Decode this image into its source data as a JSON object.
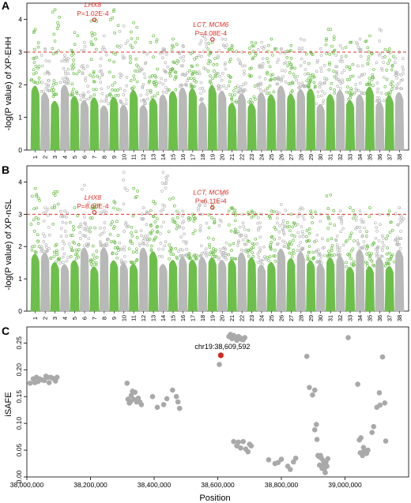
{
  "colors": {
    "green": "#6cc04a",
    "gray": "#b8b8b8",
    "threshold": "#e0302a",
    "highlight": "#d42a20",
    "isafe_point": "#a9a9a9"
  },
  "chart_data": [
    {
      "panel": "A",
      "type": "scatter",
      "subtype": "manhattan",
      "ylabel": "-log(P value) of XP-EHH",
      "ylim": [
        0,
        4.5
      ],
      "yticks": [
        0,
        1,
        2,
        3,
        4
      ],
      "threshold": 3,
      "chromosomes": [
        "1",
        "2",
        "3",
        "4",
        "5",
        "6",
        "7",
        "8",
        "9",
        "10",
        "11",
        "12",
        "13",
        "14",
        "15",
        "16",
        "17",
        "18",
        "19",
        "20",
        "21",
        "22",
        "23",
        "24",
        "25",
        "26",
        "27",
        "28",
        "29",
        "30",
        "31",
        "32",
        "33",
        "34",
        "35",
        "36",
        "37",
        "38"
      ],
      "chromosome_colors": [
        "green",
        "gray",
        "green",
        "gray",
        "green",
        "gray",
        "green",
        "gray",
        "green",
        "gray",
        "green",
        "gray",
        "green",
        "gray",
        "green",
        "gray",
        "green",
        "gray",
        "green",
        "gray",
        "green",
        "gray",
        "green",
        "gray",
        "green",
        "gray",
        "green",
        "gray",
        "green",
        "gray",
        "green",
        "gray",
        "green",
        "gray",
        "green",
        "gray",
        "green",
        "gray"
      ],
      "chromosome_top": [
        3.7,
        3.1,
        4.3,
        2.9,
        3.6,
        3.3,
        4.0,
        3.5,
        4.3,
        3.8,
        3.9,
        3.0,
        3.5,
        3.1,
        3.4,
        3.2,
        3.0,
        3.5,
        3.3,
        3.4,
        3.2,
        3.0,
        3.3,
        3.3,
        3.4,
        3.1,
        3.2,
        3.4,
        3.0,
        3.1,
        3.7,
        3.2,
        3.3,
        3.4,
        3.5,
        3.7,
        3.1,
        3.0
      ],
      "annotations": [
        {
          "genes": "LHX8",
          "pvalue": "P=1.02E-4",
          "chr": "7",
          "value": 3.99
        },
        {
          "genes": "LCT, MCM6",
          "pvalue": "P=4.08E-4",
          "chr": "19",
          "value": 3.39
        }
      ]
    },
    {
      "panel": "B",
      "type": "scatter",
      "subtype": "manhattan",
      "ylabel": "-log(P value) of XP-nSL",
      "ylim": [
        0,
        4.5
      ],
      "yticks": [
        0,
        1,
        2,
        3,
        4
      ],
      "threshold": 3,
      "chromosomes": [
        "1",
        "2",
        "3",
        "4",
        "5",
        "6",
        "7",
        "8",
        "9",
        "10",
        "11",
        "12",
        "13",
        "14",
        "15",
        "16",
        "17",
        "18",
        "19",
        "20",
        "21",
        "22",
        "23",
        "24",
        "25",
        "26",
        "27",
        "28",
        "29",
        "30",
        "31",
        "32",
        "33",
        "34",
        "35",
        "36",
        "37",
        "38"
      ],
      "chromosome_colors": [
        "green",
        "gray",
        "green",
        "gray",
        "green",
        "gray",
        "green",
        "gray",
        "green",
        "gray",
        "green",
        "gray",
        "green",
        "gray",
        "green",
        "gray",
        "green",
        "gray",
        "green",
        "gray",
        "green",
        "gray",
        "green",
        "gray",
        "green",
        "gray",
        "green",
        "gray",
        "green",
        "gray",
        "green",
        "gray",
        "green",
        "gray",
        "green",
        "gray",
        "green",
        "gray"
      ],
      "chromosome_top": [
        3.8,
        3.2,
        3.7,
        3.1,
        3.2,
        3.9,
        3.3,
        3.1,
        3.4,
        4.3,
        3.8,
        3.2,
        3.4,
        4.3,
        3.5,
        3.1,
        3.0,
        3.4,
        3.3,
        3.6,
        3.2,
        3.0,
        3.1,
        3.0,
        3.1,
        3.3,
        3.0,
        3.2,
        3.1,
        3.0,
        3.6,
        3.1,
        3.2,
        3.1,
        3.2,
        3.0,
        3.1,
        3.2
      ],
      "annotations": [
        {
          "genes": "LHX8",
          "pvalue": "P=8.66E-4",
          "chr": "7",
          "value": 3.06
        },
        {
          "genes": "LCT, MCM6",
          "pvalue": "P=6.11E-4",
          "chr": "19",
          "value": 3.21
        }
      ]
    },
    {
      "panel": "C",
      "type": "scatter",
      "xlabel": "Position",
      "ylabel": "iSAFE",
      "xlim": [
        38000000,
        39200000
      ],
      "ylim": [
        0,
        0.28
      ],
      "xticks": [
        38000000,
        38200000,
        38400000,
        38600000,
        38800000,
        39000000
      ],
      "xtick_labels": [
        "38,000,000",
        "38,200,000",
        "38,400,000",
        "38,600,000",
        "38,800,000",
        "39,000,000"
      ],
      "yticks": [
        0.0,
        0.05,
        0.1,
        0.15,
        0.2,
        0.25
      ],
      "ytick_labels": [
        "0.00",
        "0.05",
        "0.10",
        "0.15",
        "0.20",
        "0.25"
      ],
      "highlight": {
        "label": "chr19:38,609,592",
        "x": 38609592,
        "y": 0.227
      },
      "points": [
        [
          38010000,
          0.175
        ],
        [
          38020000,
          0.183
        ],
        [
          38025000,
          0.176
        ],
        [
          38030000,
          0.186
        ],
        [
          38035000,
          0.178
        ],
        [
          38040000,
          0.183
        ],
        [
          38048000,
          0.181
        ],
        [
          38055000,
          0.18
        ],
        [
          38060000,
          0.188
        ],
        [
          38065000,
          0.186
        ],
        [
          38070000,
          0.176
        ],
        [
          38075000,
          0.186
        ],
        [
          38082000,
          0.184
        ],
        [
          38090000,
          0.179
        ],
        [
          38095000,
          0.186
        ],
        [
          38315000,
          0.175
        ],
        [
          38318000,
          0.145
        ],
        [
          38322000,
          0.138
        ],
        [
          38325000,
          0.14
        ],
        [
          38328000,
          0.152
        ],
        [
          38332000,
          0.16
        ],
        [
          38335000,
          0.145
        ],
        [
          38340000,
          0.158
        ],
        [
          38345000,
          0.14
        ],
        [
          38350000,
          0.147
        ],
        [
          38355000,
          0.14
        ],
        [
          38360000,
          0.135
        ],
        [
          38395000,
          0.15
        ],
        [
          38410000,
          0.13
        ],
        [
          38430000,
          0.135
        ],
        [
          38440000,
          0.146
        ],
        [
          38458000,
          0.162
        ],
        [
          38470000,
          0.15
        ],
        [
          38475000,
          0.14
        ],
        [
          38480000,
          0.128
        ],
        [
          38605000,
          0.21
        ],
        [
          38635000,
          0.262
        ],
        [
          38640000,
          0.266
        ],
        [
          38645000,
          0.258
        ],
        [
          38650000,
          0.264
        ],
        [
          38655000,
          0.261
        ],
        [
          38660000,
          0.255
        ],
        [
          38665000,
          0.262
        ],
        [
          38670000,
          0.26
        ],
        [
          38675000,
          0.257
        ],
        [
          38680000,
          0.256
        ],
        [
          38685000,
          0.26
        ],
        [
          38650000,
          0.066
        ],
        [
          38660000,
          0.058
        ],
        [
          38665000,
          0.065
        ],
        [
          38672000,
          0.054
        ],
        [
          38680000,
          0.066
        ],
        [
          38688000,
          0.052
        ],
        [
          38695000,
          0.047
        ],
        [
          38700000,
          0.061
        ],
        [
          38705000,
          0.058
        ],
        [
          38760000,
          0.032
        ],
        [
          38780000,
          0.025
        ],
        [
          38790000,
          0.027
        ],
        [
          38800000,
          0.033
        ],
        [
          38820000,
          0.02
        ],
        [
          38828000,
          0.014
        ],
        [
          38838000,
          0.028
        ],
        [
          38845000,
          0.035
        ],
        [
          38880000,
          0.225
        ],
        [
          38888000,
          0.167
        ],
        [
          38898000,
          0.153
        ],
        [
          38905000,
          0.162
        ],
        [
          38905000,
          0.088
        ],
        [
          38910000,
          0.098
        ],
        [
          38912000,
          0.07
        ],
        [
          38915000,
          0.04
        ],
        [
          38918000,
          0.038
        ],
        [
          38920000,
          0.022
        ],
        [
          38923000,
          0.04
        ],
        [
          38926000,
          0.035
        ],
        [
          38928000,
          0.016
        ],
        [
          38930000,
          0.022
        ],
        [
          38932000,
          0.03
        ],
        [
          38935000,
          0.014
        ],
        [
          38938000,
          0.008
        ],
        [
          38940000,
          0.028
        ],
        [
          38943000,
          0.02
        ],
        [
          38946000,
          0.034
        ],
        [
          39010000,
          0.26
        ],
        [
          39040000,
          0.173
        ],
        [
          39045000,
          0.069
        ],
        [
          39048000,
          0.045
        ],
        [
          39050000,
          0.073
        ],
        [
          39052000,
          0.045
        ],
        [
          39055000,
          0.04
        ],
        [
          39058000,
          0.055
        ],
        [
          39060000,
          0.048
        ],
        [
          39064000,
          0.049
        ],
        [
          39068000,
          0.044
        ],
        [
          39072000,
          0.05
        ],
        [
          39085000,
          0.083
        ],
        [
          39090000,
          0.094
        ],
        [
          39100000,
          0.13
        ],
        [
          39110000,
          0.134
        ],
        [
          39118000,
          0.224
        ],
        [
          39125000,
          0.138
        ],
        [
          39108000,
          0.157
        ],
        [
          39128000,
          0.067
        ]
      ]
    }
  ]
}
